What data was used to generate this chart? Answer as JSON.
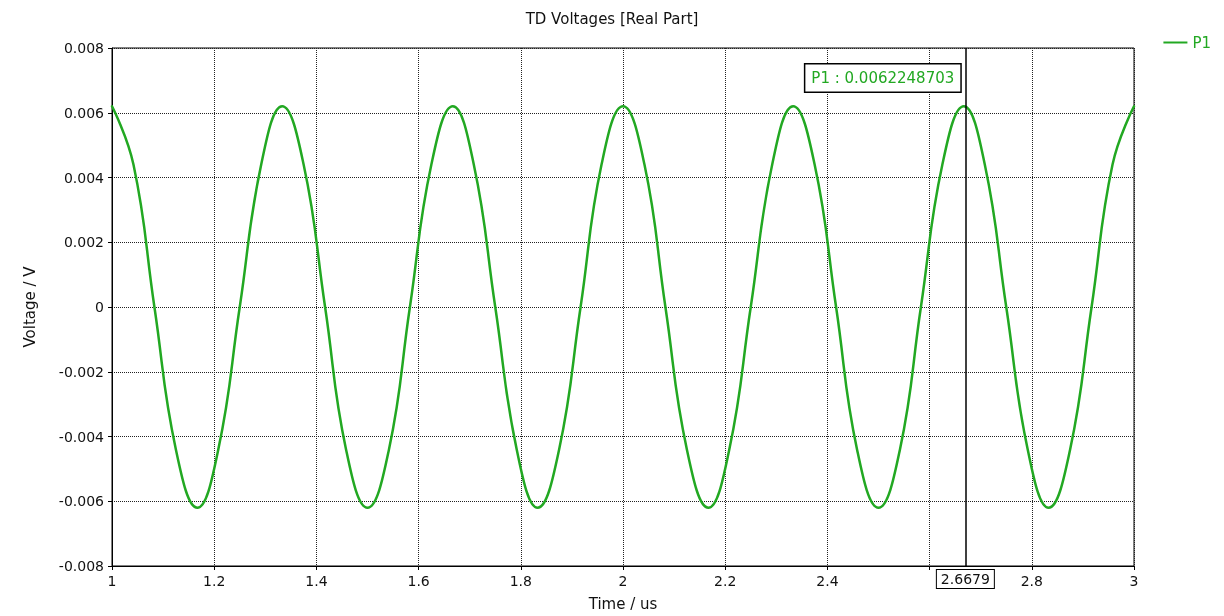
{
  "chart_data": {
    "type": "line",
    "title": "TD Voltages [Real Part]",
    "xlabel": "Time / us",
    "ylabel": "Voltage / V",
    "x": [
      1,
      1.042,
      1.083,
      1.125,
      1.167,
      1.208,
      1.25,
      1.292,
      1.333,
      1.375,
      1.417,
      1.458,
      1.5,
      1.542,
      1.583,
      1.625,
      1.667,
      1.708,
      1.75,
      1.792,
      1.833,
      1.875,
      1.917,
      1.958,
      2,
      2.042,
      2.083,
      2.125,
      2.167,
      2.208,
      2.25,
      2.292,
      2.333,
      2.375,
      2.417,
      2.458,
      2.5,
      2.542,
      2.583,
      2.625,
      2.667,
      2.708,
      2.75,
      2.792,
      2.833,
      2.875,
      2.917,
      2.958,
      3
    ],
    "series": [
      {
        "name": "P1",
        "color": "#22a822",
        "values": [
          0.0062,
          0.0044,
          0,
          -0.0044,
          -0.0062,
          -0.0044,
          0,
          0.0044,
          0.0062,
          0.0044,
          0,
          -0.0044,
          -0.0062,
          -0.0044,
          0,
          0.0044,
          0.0062,
          0.0044,
          0,
          -0.0044,
          -0.0062,
          -0.0044,
          0,
          0.0044,
          0.0062,
          0.0044,
          0,
          -0.0044,
          -0.0062,
          -0.0044,
          0,
          0.0044,
          0.0062,
          0.0044,
          0,
          -0.0044,
          -0.0062,
          -0.0044,
          0,
          0.0044,
          0.0062,
          0.0044,
          0,
          -0.0044,
          -0.0062,
          -0.0044,
          0,
          0.0044,
          0.0062
        ]
      }
    ],
    "xlim": [
      1,
      3
    ],
    "xticks": [
      1,
      1.2,
      1.4,
      1.6,
      1.8,
      2,
      2.2,
      2.4,
      {
        "value": 2.6,
        "label": null
      },
      2.8,
      3
    ],
    "ylim": [
      -0.008,
      0.008
    ],
    "yticks": [
      -0.008,
      -0.006,
      -0.004,
      -0.002,
      0,
      0.002,
      0.004,
      0.006,
      0.008
    ],
    "ref_lines": [
      {
        "axis": "x",
        "value": 2.6679,
        "label": "2.6679",
        "color": "#000000",
        "line_style": "solid"
      }
    ],
    "annotations": [
      {
        "text": "P1 : 0.0062248703",
        "x": 2.6679,
        "y": 0.0062248703
      }
    ],
    "grid": true,
    "legend": "top right",
    "marker": "none",
    "line_style": "solid"
  }
}
